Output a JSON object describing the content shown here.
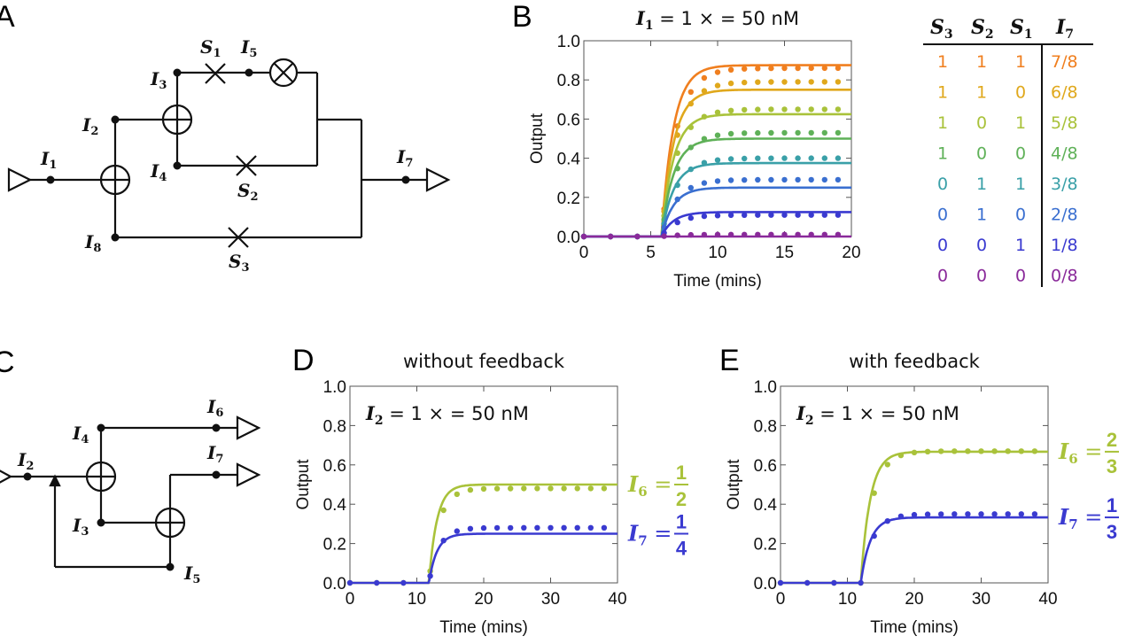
{
  "panels": {
    "A": "A",
    "B": "B",
    "C": "C",
    "D": "D",
    "E": "E"
  },
  "circuitA": {
    "nodes": [
      {
        "label": "I",
        "sub": "1"
      },
      {
        "label": "I",
        "sub": "2"
      },
      {
        "label": "I",
        "sub": "3"
      },
      {
        "label": "I",
        "sub": "4"
      },
      {
        "label": "I",
        "sub": "5"
      },
      {
        "label": "I",
        "sub": "7"
      },
      {
        "label": "I",
        "sub": "8"
      }
    ],
    "switches": [
      {
        "label": "S",
        "sub": "1"
      },
      {
        "label": "S",
        "sub": "2"
      },
      {
        "label": "S",
        "sub": "3"
      }
    ]
  },
  "circuitC": {
    "nodes": [
      {
        "label": "I",
        "sub": "2"
      },
      {
        "label": "I",
        "sub": "3"
      },
      {
        "label": "I",
        "sub": "4"
      },
      {
        "label": "I",
        "sub": "5"
      },
      {
        "label": "I",
        "sub": "6"
      },
      {
        "label": "I",
        "sub": "7"
      }
    ]
  },
  "truth_table": {
    "headers": [
      {
        "label": "S",
        "sub": "3"
      },
      {
        "label": "S",
        "sub": "2"
      },
      {
        "label": "S",
        "sub": "1"
      },
      {
        "label": "I",
        "sub": "7"
      }
    ],
    "rows": [
      {
        "s3": "1",
        "s2": "1",
        "s1": "1",
        "out": "7/8",
        "color": "#f07f1f"
      },
      {
        "s3": "1",
        "s2": "1",
        "s1": "0",
        "out": "6/8",
        "color": "#e0a81c"
      },
      {
        "s3": "1",
        "s2": "0",
        "s1": "1",
        "out": "5/8",
        "color": "#a9c23a"
      },
      {
        "s3": "1",
        "s2": "0",
        "s1": "0",
        "out": "4/8",
        "color": "#5fb158"
      },
      {
        "s3": "0",
        "s2": "1",
        "s1": "1",
        "out": "3/8",
        "color": "#3aa0a8"
      },
      {
        "s3": "0",
        "s2": "1",
        "s1": "0",
        "out": "2/8",
        "color": "#3a6fd0"
      },
      {
        "s3": "0",
        "s2": "0",
        "s1": "1",
        "out": "1/8",
        "color": "#3a3ad0"
      },
      {
        "s3": "0",
        "s2": "0",
        "s1": "0",
        "out": "0/8",
        "color": "#8a2a9a"
      }
    ]
  },
  "chart_data": [
    {
      "id": "B",
      "type": "line",
      "title_parts": {
        "var": "I",
        "sub": "1",
        "rest": " = 1 × = 50 nM"
      },
      "xlabel": "Time (mins)",
      "ylabel": "Output",
      "xlim": [
        0,
        20
      ],
      "ylim": [
        0,
        1.0
      ],
      "xticks": [
        0,
        5,
        10,
        15,
        20
      ],
      "yticks": [
        0.0,
        0.2,
        0.4,
        0.6,
        0.8,
        1.0
      ],
      "onset": 5.8,
      "rise": 0.9,
      "series": [
        {
          "plateau": 0.875,
          "color": "#f07f1f",
          "dots": 0.86
        },
        {
          "plateau": 0.75,
          "color": "#e0a81c",
          "dots": 0.79
        },
        {
          "plateau": 0.625,
          "color": "#a9c23a",
          "dots": 0.65
        },
        {
          "plateau": 0.5,
          "color": "#5fb158",
          "dots": 0.53
        },
        {
          "plateau": 0.375,
          "color": "#3aa0a8",
          "dots": 0.4
        },
        {
          "plateau": 0.25,
          "color": "#3a6fd0",
          "dots": 0.29
        },
        {
          "plateau": 0.125,
          "color": "#3a3ad0",
          "dots": 0.11
        },
        {
          "plateau": 0.0,
          "color": "#8a2a9a",
          "dots": 0.01
        }
      ]
    },
    {
      "id": "D",
      "type": "line",
      "heading": "without feedback",
      "annot_parts": {
        "var": "I",
        "sub": "2",
        "rest": " = 1 × = 50 nM"
      },
      "xlabel": "Time (mins)",
      "ylabel": "Output",
      "xlim": [
        0,
        40
      ],
      "ylim": [
        0,
        1.0
      ],
      "xticks": [
        0,
        10,
        20,
        30,
        40
      ],
      "yticks": [
        0.0,
        0.2,
        0.4,
        0.6,
        0.8,
        1.0
      ],
      "onset": 11.8,
      "rise": 1.2,
      "series": [
        {
          "name": "I6",
          "sub": "6",
          "frac_num": "1",
          "frac_den": "2",
          "plateau": 0.5,
          "color": "#a9c23a",
          "dots": 0.48
        },
        {
          "name": "I7",
          "sub": "7",
          "frac_num": "1",
          "frac_den": "4",
          "plateau": 0.25,
          "color": "#3a3ad0",
          "dots": 0.28
        }
      ]
    },
    {
      "id": "E",
      "type": "line",
      "heading": "with feedback",
      "annot_parts": {
        "var": "I",
        "sub": "2",
        "rest": " = 1 × = 50 nM"
      },
      "xlabel": "Time (mins)",
      "ylabel": "Output",
      "xlim": [
        0,
        40
      ],
      "ylim": [
        0,
        1.0
      ],
      "xticks": [
        0,
        10,
        20,
        30,
        40
      ],
      "yticks": [
        0.0,
        0.2,
        0.4,
        0.6,
        0.8,
        1.0
      ],
      "onset": 12.0,
      "rise": 1.4,
      "series": [
        {
          "name": "I6",
          "sub": "6",
          "frac_num": "2",
          "frac_den": "3",
          "plateau": 0.667,
          "color": "#a9c23a",
          "dots": 0.67
        },
        {
          "name": "I7",
          "sub": "7",
          "frac_num": "1",
          "frac_den": "3",
          "plateau": 0.333,
          "color": "#3a3ad0",
          "dots": 0.35
        }
      ]
    }
  ]
}
